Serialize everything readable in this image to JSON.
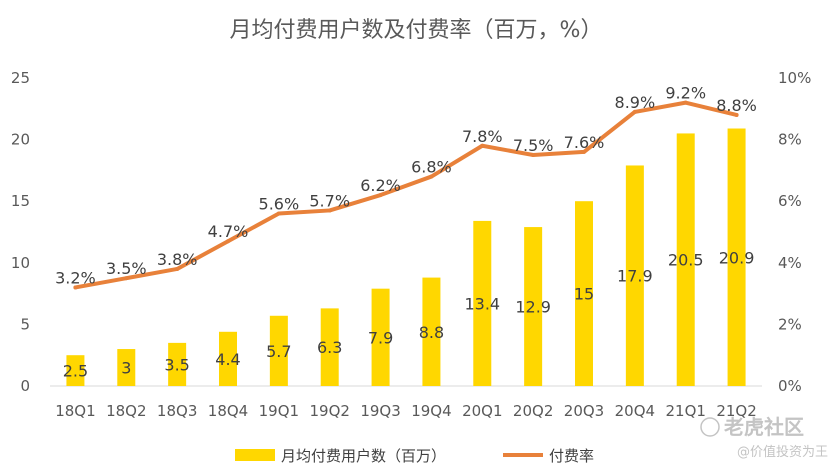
{
  "chart_data": {
    "type": "bar",
    "title": "月均付费用户数及付费率（百万，%）",
    "categories": [
      "18Q1",
      "18Q2",
      "18Q3",
      "18Q4",
      "19Q1",
      "19Q2",
      "19Q3",
      "19Q4",
      "20Q1",
      "20Q2",
      "20Q3",
      "20Q4",
      "21Q1",
      "21Q2"
    ],
    "series": [
      {
        "name": "月均付费用户数（百万）",
        "type": "bar",
        "axis": "left",
        "color": "#FFD700",
        "values": [
          2.5,
          3,
          3.5,
          4.4,
          5.7,
          6.3,
          7.9,
          8.8,
          13.4,
          12.9,
          15,
          17.9,
          20.5,
          20.9
        ],
        "labels": [
          "2.5",
          "3",
          "3.5",
          "4.4",
          "5.7",
          "6.3",
          "7.9",
          "8.8",
          "13.4",
          "12.9",
          "15",
          "17.9",
          "20.5",
          "20.9"
        ]
      },
      {
        "name": "付费率",
        "type": "line",
        "axis": "right",
        "color": "#E8813A",
        "values": [
          3.2,
          3.5,
          3.8,
          4.7,
          5.6,
          5.7,
          6.2,
          6.8,
          7.8,
          7.5,
          7.6,
          8.9,
          9.2,
          8.8
        ],
        "labels": [
          "3.2%",
          "3.5%",
          "3.8%",
          "4.7%",
          "5.6%",
          "5.7%",
          "6.2%",
          "6.8%",
          "7.8%",
          "7.5%",
          "7.6%",
          "8.9%",
          "9.2%",
          "8.8%"
        ]
      }
    ],
    "y_left": {
      "ylim": [
        0,
        25
      ],
      "ticks": [
        "0",
        "5",
        "10",
        "15",
        "20",
        "25"
      ]
    },
    "y_right": {
      "ylim": [
        0,
        10
      ],
      "ticks": [
        "0%",
        "2%",
        "4%",
        "6%",
        "8%",
        "10%"
      ]
    },
    "grid": false,
    "legend_position": "bottom"
  },
  "watermark": {
    "main": "老虎社区",
    "sub": "@价值投资为王"
  }
}
